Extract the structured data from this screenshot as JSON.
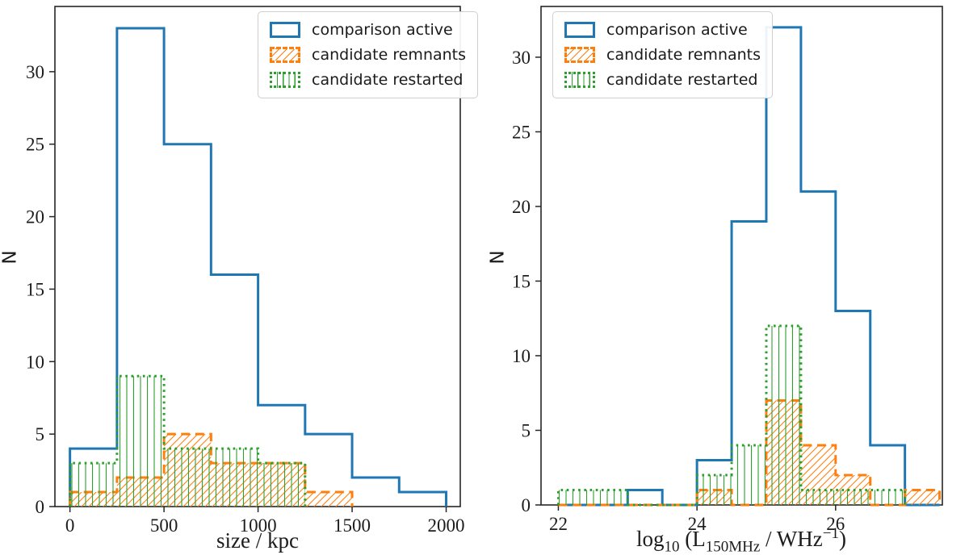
{
  "figure": {
    "background": "#ffffff",
    "colors": {
      "comparison_active": "#1f77b4",
      "candidate_remnants": "#ff7f0e",
      "candidate_restarted": "#2ca02c",
      "axis": "#262626",
      "tick_text": "#1c1c1c"
    }
  },
  "legend": {
    "items": [
      {
        "label": "comparison active"
      },
      {
        "label": "candidate remnants"
      },
      {
        "label": "candidate restarted"
      }
    ]
  },
  "chart_data": [
    {
      "type": "bar",
      "subtype": "step-histogram",
      "panel": "size",
      "title": "",
      "xlabel": "size / kpc",
      "ylabel": "N",
      "xlim": [
        -80,
        2075
      ],
      "ylim": [
        0,
        34.5
      ],
      "xticks": [
        0,
        500,
        1000,
        1500,
        2000
      ],
      "yticks": [
        0,
        5,
        10,
        15,
        20,
        25,
        30
      ],
      "grid": false,
      "legend_position": "top-right",
      "series": [
        {
          "name": "comparison active",
          "color": "#1f77b4",
          "line": "solid",
          "hatch": "none",
          "bin_start": 0,
          "bin_width": 250,
          "values": [
            4,
            33,
            25,
            16,
            7,
            5,
            2,
            1
          ]
        },
        {
          "name": "candidate remnants",
          "color": "#ff7f0e",
          "line": "dashed",
          "hatch": "diagonal",
          "bin_start": 0,
          "bin_width": 250,
          "values": [
            1,
            2,
            5,
            3,
            3,
            1
          ]
        },
        {
          "name": "candidate restarted",
          "color": "#2ca02c",
          "line": "dotted",
          "hatch": "vertical",
          "bin_start": 0,
          "bin_width": 250,
          "values": [
            3,
            9,
            4,
            4,
            3
          ]
        }
      ]
    },
    {
      "type": "bar",
      "subtype": "step-histogram",
      "panel": "luminosity",
      "title": "",
      "xlabel": "log10 (L150MHz / WHz-1)",
      "xlabel_parts": [
        {
          "t": "log"
        },
        {
          "t": "10",
          "sub": true
        },
        {
          "t": " (L"
        },
        {
          "t": "150MHz",
          "sub": true
        },
        {
          "t": " / WHz"
        },
        {
          "t": "−1",
          "sup": true
        },
        {
          "t": ")"
        }
      ],
      "ylabel": "N",
      "xlim": [
        21.75,
        27.54
      ],
      "ylim": [
        0,
        33.4
      ],
      "xticks": [
        22,
        24,
        26
      ],
      "yticks": [
        0,
        5,
        10,
        15,
        20,
        25,
        30
      ],
      "grid": false,
      "legend_position": "top-left",
      "series": [
        {
          "name": "comparison active",
          "color": "#1f77b4",
          "line": "solid",
          "hatch": "none",
          "bin_start": 22,
          "bin_width": 0.5,
          "values": [
            0,
            0,
            1,
            0,
            3,
            19,
            32,
            21,
            13,
            4,
            0
          ]
        },
        {
          "name": "candidate remnants",
          "color": "#ff7f0e",
          "line": "dashed",
          "hatch": "diagonal",
          "bin_start": 22,
          "bin_width": 0.5,
          "values": [
            0,
            0,
            0,
            0,
            1,
            0,
            7,
            4,
            2,
            0,
            1
          ]
        },
        {
          "name": "candidate restarted",
          "color": "#2ca02c",
          "line": "dotted",
          "hatch": "vertical",
          "bin_start": 22,
          "bin_width": 0.5,
          "values": [
            1,
            1,
            0,
            0,
            2,
            4,
            12,
            1,
            1,
            1
          ]
        }
      ]
    }
  ]
}
